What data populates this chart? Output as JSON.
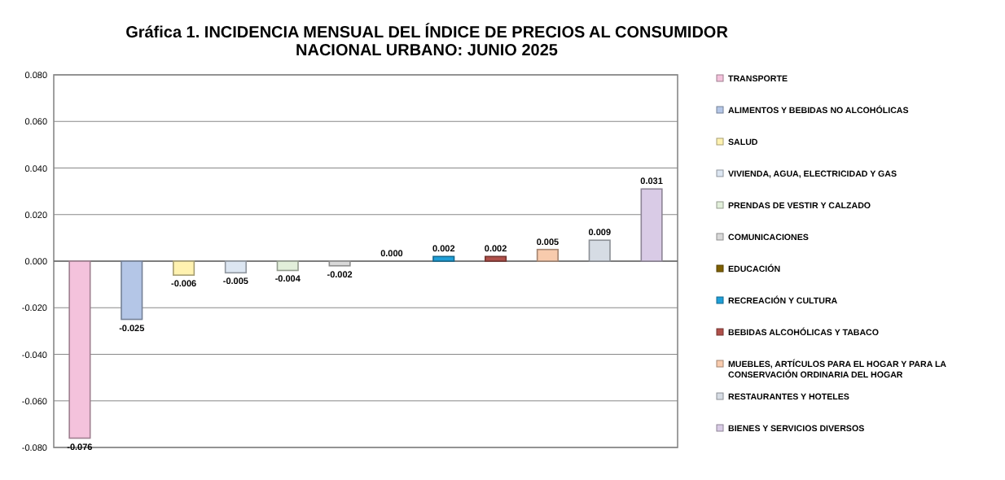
{
  "chart_data": {
    "type": "bar",
    "title": "Gráfica 1.  INCIDENCIA MENSUAL  DEL ÍNDICE DE PRECIOS AL CONSUMIDOR\nNACIONAL URBANO: JUNIO 2025",
    "categories": [
      null,
      null,
      null,
      null,
      null,
      null,
      null,
      null,
      null,
      null,
      null,
      null
    ],
    "series": [
      {
        "name": "TRANSPORTE",
        "color": "#f4c2dc",
        "values": [
          -0.076,
          null,
          null,
          null,
          null,
          null,
          null,
          null,
          null,
          null,
          null,
          null
        ]
      },
      {
        "name": "ALIMENTOS Y BEBIDAS NO ALCOHÓLICAS",
        "color": "#b4c6e7",
        "values": [
          null,
          -0.025,
          null,
          null,
          null,
          null,
          null,
          null,
          null,
          null,
          null,
          null
        ]
      },
      {
        "name": "SALUD",
        "color": "#fff2b0",
        "values": [
          null,
          null,
          -0.006,
          null,
          null,
          null,
          null,
          null,
          null,
          null,
          null,
          null
        ]
      },
      {
        "name": "VIVIENDA, AGUA, ELECTRICIDAD Y GAS",
        "color": "#dce6f2",
        "values": [
          null,
          null,
          null,
          -0.005,
          null,
          null,
          null,
          null,
          null,
          null,
          null,
          null
        ]
      },
      {
        "name": "PRENDAS DE VESTIR Y CALZADO",
        "color": "#e2efda",
        "values": [
          null,
          null,
          null,
          null,
          -0.004,
          null,
          null,
          null,
          null,
          null,
          null,
          null
        ]
      },
      {
        "name": "COMUNICACIONES",
        "color": "#d9d9d9",
        "values": [
          null,
          null,
          null,
          null,
          null,
          -0.002,
          null,
          null,
          null,
          null,
          null,
          null
        ]
      },
      {
        "name": "EDUCACIÓN",
        "color": "#7f6000",
        "values": [
          null,
          null,
          null,
          null,
          null,
          null,
          0.0,
          null,
          null,
          null,
          null,
          null
        ],
        "value_labels": [
          null,
          null,
          null,
          null,
          null,
          null,
          "0.000",
          null,
          null,
          null,
          null,
          null
        ]
      },
      {
        "name": "RECREACIÓN Y CULTURA",
        "color": "#1f9fd8",
        "values": [
          null,
          null,
          null,
          null,
          null,
          null,
          null,
          0.002,
          null,
          null,
          null,
          null
        ]
      },
      {
        "name": "BEBIDAS ALCOHÓLICAS Y TABACO",
        "color": "#b0504a",
        "values": [
          null,
          null,
          null,
          null,
          null,
          null,
          null,
          null,
          0.002,
          null,
          null,
          null
        ]
      },
      {
        "name": "MUEBLES, ARTÍCULOS PARA EL HOGAR Y PARA LA CONSERVACIÓN ORDINARIA DEL HOGAR",
        "color": "#f8cbad",
        "values": [
          null,
          null,
          null,
          null,
          null,
          null,
          null,
          null,
          null,
          0.005,
          null,
          null
        ]
      },
      {
        "name": "RESTAURANTES Y HOTELES",
        "color": "#d6dce4",
        "values": [
          null,
          null,
          null,
          null,
          null,
          null,
          null,
          null,
          null,
          null,
          0.009,
          null
        ]
      },
      {
        "name": "BIENES Y SERVICIOS DIVERSOS",
        "color": "#d9cbe6",
        "values": [
          null,
          null,
          null,
          null,
          null,
          null,
          null,
          null,
          null,
          null,
          null,
          0.031
        ]
      }
    ],
    "ylim": [
      -0.08,
      0.08
    ],
    "yticks": [
      {
        "value": -0.08,
        "label": "-0.080"
      },
      {
        "value": -0.06,
        "label": "-0.060"
      },
      {
        "value": -0.04,
        "label": "-0.040"
      },
      {
        "value": -0.02,
        "label": "-0.020"
      },
      {
        "value": 0,
        "label": "0.000"
      },
      {
        "value": 0.02,
        "label": "0.020"
      },
      {
        "value": 0.04,
        "label": "0.040"
      },
      {
        "value": 0.06,
        "label": "0.060"
      },
      {
        "value": 0.08,
        "label": "0.080"
      }
    ],
    "grid": "y",
    "legend": "right",
    "data_labels": true
  }
}
